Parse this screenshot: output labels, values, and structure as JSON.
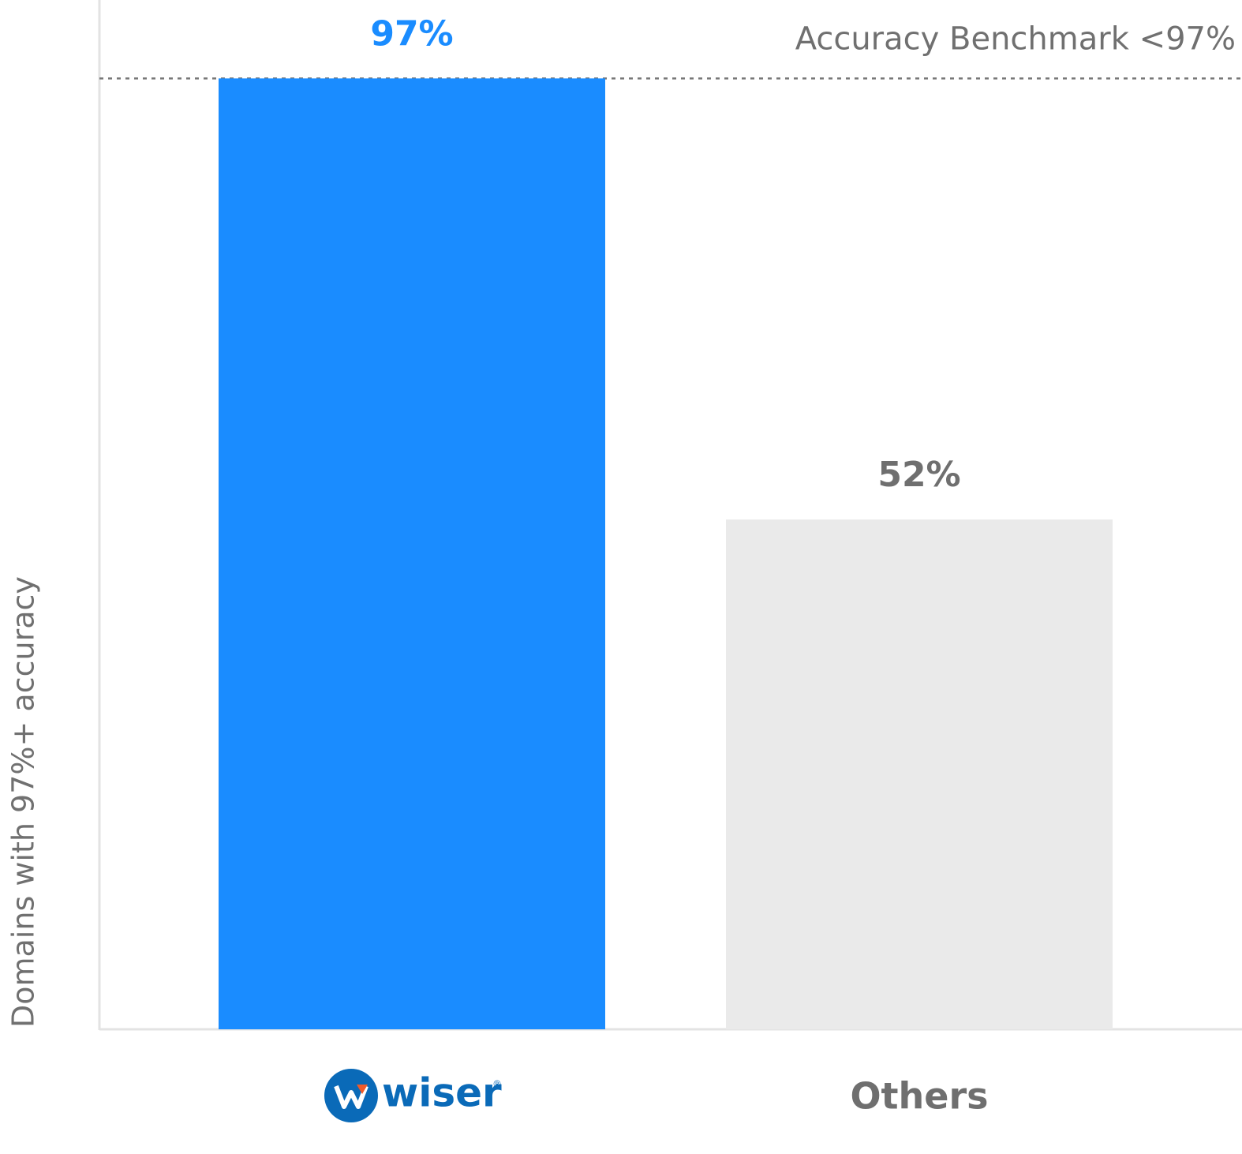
{
  "chart_data": {
    "type": "bar",
    "y_axis_label": "Domains with 97%+ accuracy",
    "categories": [
      "wiser",
      "Others"
    ],
    "registered_mark": "®",
    "values": [
      97,
      52
    ],
    "value_labels": [
      "97%",
      "52%"
    ],
    "colors": [
      "#1a8cff",
      "#eaeaea"
    ],
    "label_colors": [
      "#1a8cff",
      "#6f6f6f"
    ],
    "ylim": [
      0,
      105
    ],
    "reference_line": {
      "value": 97,
      "label": "Accuracy Benchmark <97%"
    }
  }
}
